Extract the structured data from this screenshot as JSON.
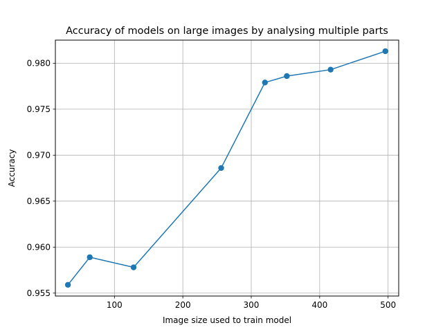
{
  "chart_data": {
    "type": "line",
    "title": "Accuracy of models on large images by analysing multiple parts",
    "xlabel": "Image size used to train model",
    "ylabel": "Accuracy",
    "xlim": [
      13.68,
      515.52
    ],
    "ylim": [
      0.95468,
      0.98251
    ],
    "xticks": [
      100,
      200,
      300,
      400,
      500
    ],
    "yticks": [
      0.955,
      0.96,
      0.965,
      0.97,
      0.975,
      0.98
    ],
    "xtick_labels": [
      "100",
      "200",
      "300",
      "400",
      "500"
    ],
    "ytick_labels": [
      "0.955",
      "0.960",
      "0.965",
      "0.970",
      "0.975",
      "0.980"
    ],
    "grid": true,
    "series": [
      {
        "color": "#1f77b4",
        "marker": "circle",
        "x": [
          32,
          64,
          128,
          256,
          320,
          352,
          416,
          496
        ],
        "y": [
          0.9559,
          0.9589,
          0.9578,
          0.9686,
          0.9779,
          0.9786,
          0.9793,
          0.9813
        ]
      }
    ]
  }
}
